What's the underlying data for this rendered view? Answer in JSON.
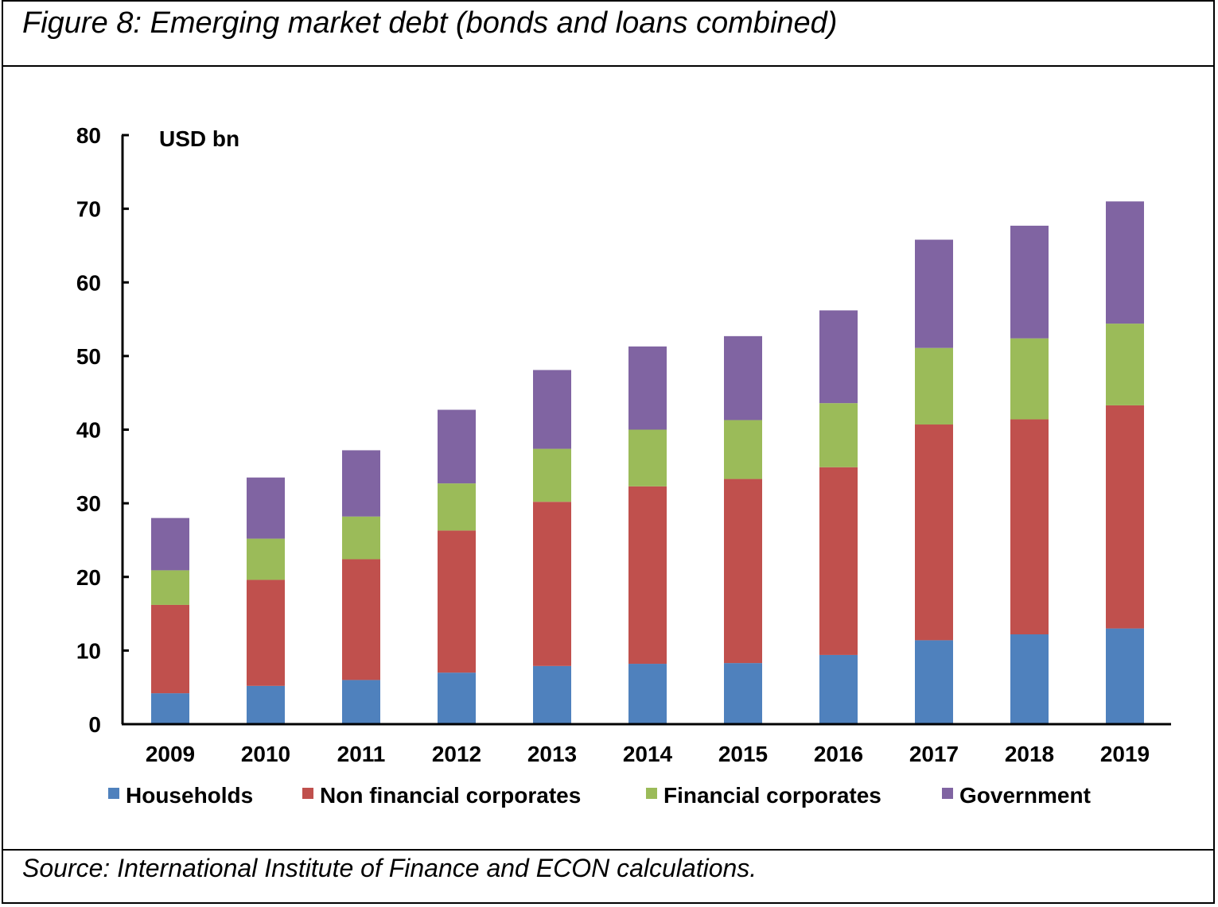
{
  "figure": {
    "title": "Figure 8: Emerging market debt (bonds and loans combined)",
    "source": "Source: International Institute of Finance and ECON calculations."
  },
  "chart_data": {
    "type": "bar",
    "stacked": true,
    "title": "Figure 8: Emerging market debt (bonds and loans combined)",
    "ylabel": "USD bn",
    "xlabel": "",
    "ylim": [
      0,
      80
    ],
    "yticks": [
      0,
      10,
      20,
      30,
      40,
      50,
      60,
      70,
      80
    ],
    "categories": [
      "2009",
      "2010",
      "2011",
      "2012",
      "2013",
      "2014",
      "2015",
      "2016",
      "2017",
      "2018",
      "2019"
    ],
    "series": [
      {
        "name": "Households",
        "color": "#4f81bd",
        "values": [
          4.2,
          5.2,
          6.0,
          7.0,
          7.9,
          8.2,
          8.3,
          9.4,
          11.4,
          12.2,
          13.0
        ]
      },
      {
        "name": "Non financial corporates",
        "color": "#c0504d",
        "values": [
          12.0,
          14.4,
          16.4,
          19.3,
          22.3,
          24.1,
          25.0,
          25.5,
          29.3,
          29.2,
          30.3
        ]
      },
      {
        "name": "Financial corporates",
        "color": "#9bbb59",
        "values": [
          4.7,
          5.6,
          5.8,
          6.4,
          7.2,
          7.7,
          8.0,
          8.7,
          10.4,
          11.0,
          11.1
        ]
      },
      {
        "name": "Government",
        "color": "#8064a2",
        "values": [
          7.1,
          8.3,
          9.0,
          10.0,
          10.7,
          11.3,
          11.4,
          12.6,
          14.7,
          15.3,
          16.6
        ]
      }
    ],
    "legend_position": "bottom"
  }
}
